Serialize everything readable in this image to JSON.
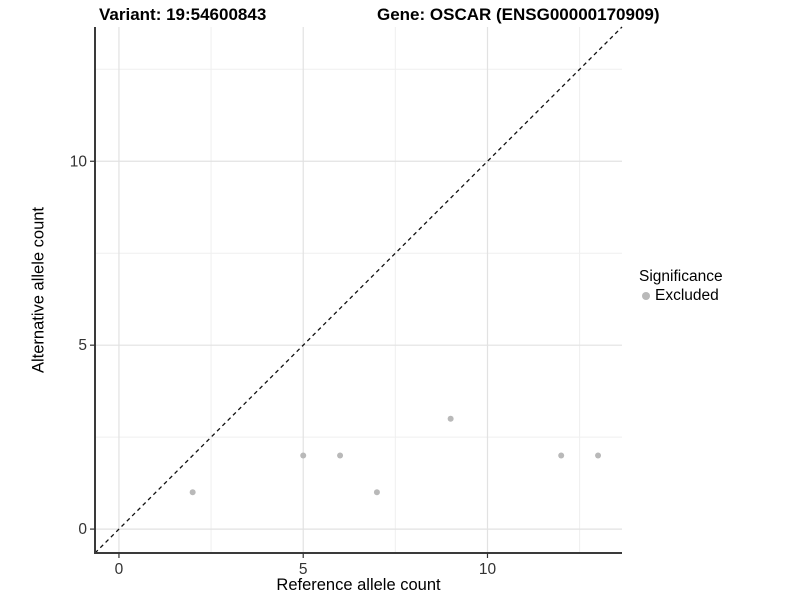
{
  "chart_data": {
    "type": "scatter",
    "titles": {
      "left": "Variant: 19:54600843",
      "right": "Gene: OSCAR (ENSG00000170909)"
    },
    "xlabel": "Reference allele count",
    "ylabel": "Alternative allele count",
    "xlim": [
      -0.65,
      13.65
    ],
    "ylim": [
      -0.65,
      13.65
    ],
    "x_ticks": [
      0,
      5,
      10
    ],
    "y_ticks": [
      0,
      5,
      10
    ],
    "x_minor_gridlines": [
      2.5,
      7.5,
      12.5
    ],
    "y_minor_gridlines": [
      2.5,
      7.5,
      12.5
    ],
    "grid": true,
    "legend_position": "right",
    "series": [
      {
        "name": "Excluded",
        "color": "#b9b9b9",
        "points": [
          [
            2,
            1
          ],
          [
            5,
            2
          ],
          [
            6,
            2
          ],
          [
            7,
            1
          ],
          [
            9,
            3
          ],
          [
            12,
            2
          ],
          [
            13,
            2
          ]
        ]
      }
    ],
    "reference_line": {
      "kind": "identity",
      "style": "dashed",
      "color": "#111111"
    },
    "legend": {
      "title": "Significance",
      "entries": [
        {
          "label": "Excluded",
          "color": "#b9b9b9"
        }
      ]
    },
    "colors": {
      "major_grid": "#e2e2e2",
      "minor_grid": "#efefef",
      "axis_line": "#3a3a3a",
      "tick_mark": "#333333",
      "tick_label": "#333333"
    }
  }
}
